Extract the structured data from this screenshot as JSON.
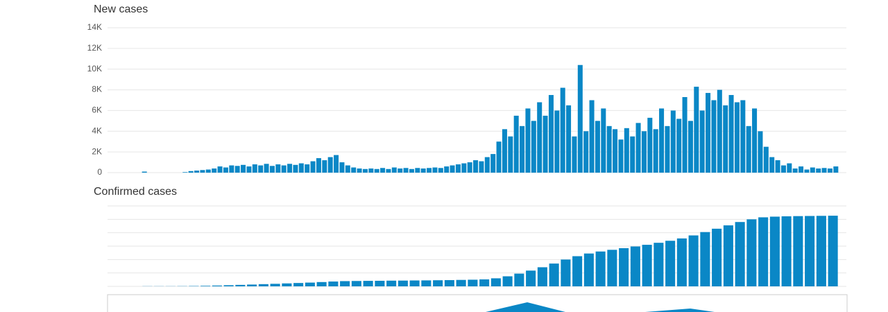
{
  "chart_data": [
    {
      "type": "bar",
      "title": "New cases",
      "color": "#0a87c6",
      "grid": true,
      "ylim": [
        0,
        14000
      ],
      "yticks": [
        0,
        {
          "value": 2000,
          "label": "2K"
        },
        {
          "value": 4000,
          "label": "4K"
        },
        {
          "value": 6000,
          "label": "6K"
        },
        {
          "value": 8000,
          "label": "8K"
        },
        {
          "value": 10000,
          "label": "10K"
        },
        {
          "value": 12000,
          "label": "12K"
        },
        {
          "value": 14000,
          "label": "14K"
        }
      ],
      "categories": [
        null,
        null,
        null,
        null,
        null,
        null,
        null,
        null,
        null,
        null,
        null,
        null,
        null,
        null,
        null,
        null,
        null,
        null,
        null,
        null,
        null,
        null,
        null,
        null,
        null,
        null,
        null,
        null,
        null,
        null,
        null,
        null,
        null,
        null,
        null,
        null,
        null,
        null,
        null,
        null,
        null,
        null,
        null,
        null,
        null,
        null,
        null,
        null,
        null,
        null,
        null,
        null,
        null,
        null,
        null,
        null,
        null,
        null,
        null,
        null,
        null,
        null,
        null,
        null,
        null,
        null,
        null,
        null,
        null,
        null,
        null,
        null,
        null,
        null,
        null,
        null,
        null,
        null,
        null,
        null,
        null,
        null,
        null,
        null,
        null,
        null,
        null,
        null,
        null,
        null,
        null,
        null,
        null,
        null,
        null,
        null,
        null,
        null,
        null,
        null,
        null,
        null,
        null,
        null,
        null,
        null,
        null,
        null,
        null,
        null,
        null,
        null,
        null,
        null,
        null,
        null,
        null,
        null,
        null,
        null
      ],
      "values": [
        100,
        0,
        0,
        0,
        0,
        0,
        0,
        50,
        150,
        200,
        250,
        300,
        400,
        600,
        500,
        700,
        650,
        750,
        600,
        800,
        700,
        850,
        650,
        800,
        700,
        850,
        750,
        900,
        800,
        1100,
        1400,
        1200,
        1500,
        1700,
        1000,
        700,
        500,
        400,
        350,
        400,
        350,
        450,
        350,
        500,
        400,
        450,
        350,
        450,
        400,
        450,
        500,
        450,
        600,
        700,
        800,
        900,
        1000,
        1200,
        1100,
        1500,
        1800,
        3000,
        4200,
        3500,
        5500,
        4500,
        6200,
        5000,
        6800,
        5500,
        7500,
        6000,
        8200,
        6500,
        3500,
        10400,
        4000,
        7000,
        5000,
        6200,
        4500,
        4200,
        3200,
        4300,
        3500,
        4800,
        4000,
        5300,
        4200,
        6200,
        4500,
        6000,
        5200,
        7300,
        5000,
        8300,
        6000,
        7700,
        7000,
        8000,
        6500,
        7500,
        6800,
        7000,
        4500,
        6200,
        4000,
        2500,
        1500,
        1200,
        700,
        900,
        400,
        600,
        300,
        500,
        400,
        450,
        400,
        600
      ]
    },
    {
      "type": "bar",
      "title": "Confirmed cases",
      "color": "#0a87c6",
      "grid": true,
      "ylim": [
        0,
        1200000
      ],
      "categories": [
        null,
        null,
        null,
        null,
        null,
        null,
        null,
        null,
        null,
        null,
        null,
        null,
        null,
        null,
        null,
        null,
        null,
        null,
        null,
        null,
        null,
        null,
        null,
        null,
        null,
        null,
        null,
        null,
        null,
        null,
        null,
        null,
        null,
        null,
        null,
        null,
        null,
        null,
        null,
        null,
        null,
        null,
        null,
        null,
        null,
        null,
        null,
        null,
        null,
        null,
        null,
        null,
        null,
        null,
        null,
        null,
        null,
        null,
        null,
        null
      ],
      "values": [
        2000,
        2000,
        2000,
        3000,
        5000,
        8000,
        12000,
        17000,
        22000,
        27000,
        33000,
        38000,
        44000,
        50000,
        56000,
        64000,
        72000,
        78000,
        80000,
        82000,
        83000,
        85000,
        86000,
        88000,
        89000,
        91000,
        93000,
        96000,
        99000,
        104000,
        120000,
        150000,
        190000,
        235000,
        285000,
        340000,
        400000,
        450000,
        490000,
        520000,
        545000,
        570000,
        595000,
        620000,
        650000,
        680000,
        715000,
        760000,
        810000,
        860000,
        910000,
        960000,
        1000000,
        1030000,
        1040000,
        1045000,
        1048000,
        1050000,
        1052000,
        1054000
      ]
    }
  ]
}
